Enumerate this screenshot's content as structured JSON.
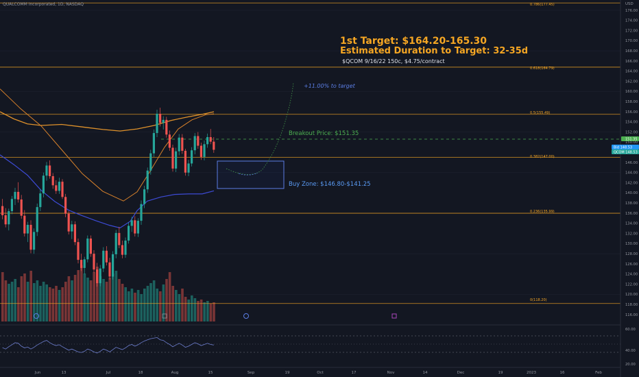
{
  "header": {
    "title": "QUALCOMM Incorporated, 1D, NASDAQ",
    "currency": "USD"
  },
  "annotations": {
    "target_line1": "1st Target: $164.20-165.30",
    "target_line2": "Estimated Duration to Target: 32-35d",
    "contract": "$QCOM 9/16/22 150c, $4.75/contract",
    "percent_to_target": "+11.00% to target",
    "breakout": "Breakout Price: $151.35",
    "buy_zone": "Buy Zone: $146.80-$141.25"
  },
  "fib_levels": [
    {
      "label": "0.786(177.45)",
      "value": 177.45
    },
    {
      "label": "0.618(164.79)",
      "value": 164.79
    },
    {
      "label": "0.5(155.49)",
      "value": 155.49
    },
    {
      "label": "0.382(147.00)",
      "value": 147.0
    },
    {
      "label": "0.236(135.99)",
      "value": 135.99
    },
    {
      "label": "0(118.20)",
      "value": 118.2
    }
  ],
  "price_axis_labels": [
    "176.00",
    "174.00",
    "172.00",
    "170.00",
    "168.00",
    "166.00",
    "164.00",
    "162.00",
    "160.00",
    "158.00",
    "156.00",
    "154.00",
    "152.00",
    "150.00",
    "148.00",
    "146.00",
    "144.00",
    "142.00",
    "140.00",
    "138.00",
    "136.00",
    "134.00",
    "132.00",
    "130.00",
    "128.00",
    "126.00",
    "124.00",
    "122.00",
    "120.00",
    "118.00",
    "116.00"
  ],
  "price_tags": [
    {
      "label": "151.35",
      "color": "#4caf50"
    },
    {
      "label": "Bid 148.53",
      "color": "#2196f3"
    },
    {
      "label": "QCOM 148.53",
      "color": "#26a69a"
    }
  ],
  "indicator_axis_labels": [
    "60.00",
    "40.00",
    "20.00"
  ],
  "time_axis_labels": [
    "Jun",
    "13",
    "Jul",
    "18",
    "Aug",
    "15",
    "Sep",
    "19",
    "Oct",
    "17",
    "Nov",
    "14",
    "Dec",
    "19",
    "2023",
    "16",
    "Feb"
  ],
  "chart_data": {
    "type": "candlestick",
    "symbol": "QCOM",
    "ylim": [
      115,
      180
    ],
    "breakout_price": 151.35,
    "buy_zone": [
      141.25,
      146.8
    ],
    "target_range": [
      164.2,
      165.3
    ],
    "last_price": 148.53,
    "candles": [
      [
        137.4,
        138.8,
        134.8,
        135.6
      ],
      [
        135.6,
        137.0,
        133.2,
        133.8
      ],
      [
        133.8,
        136.9,
        132.6,
        136.4
      ],
      [
        136.4,
        139.4,
        135.8,
        138.8
      ],
      [
        138.8,
        141.0,
        137.6,
        140.2
      ],
      [
        140.2,
        142.1,
        138.1,
        138.7
      ],
      [
        138.7,
        139.6,
        134.9,
        135.5
      ],
      [
        135.5,
        136.6,
        131.4,
        132.0
      ],
      [
        132.0,
        134.3,
        130.3,
        133.7
      ],
      [
        133.7,
        134.6,
        128.1,
        128.8
      ],
      [
        128.8,
        133.0,
        128.0,
        132.3
      ],
      [
        132.3,
        137.9,
        131.5,
        137.2
      ],
      [
        137.2,
        140.8,
        136.4,
        139.9
      ],
      [
        139.9,
        144.0,
        139.1,
        143.4
      ],
      [
        143.4,
        146.1,
        142.4,
        145.4
      ],
      [
        145.4,
        146.4,
        142.8,
        143.3
      ],
      [
        143.3,
        143.9,
        140.8,
        141.5
      ],
      [
        141.5,
        142.5,
        139.8,
        140.4
      ],
      [
        140.4,
        143.0,
        139.8,
        142.2
      ],
      [
        142.2,
        142.7,
        138.8,
        139.2
      ],
      [
        139.2,
        139.8,
        135.2,
        135.9
      ],
      [
        135.9,
        136.4,
        131.8,
        132.4
      ],
      [
        132.4,
        134.5,
        130.9,
        133.8
      ],
      [
        133.8,
        134.4,
        129.7,
        130.3
      ],
      [
        130.3,
        131.0,
        126.1,
        126.8
      ],
      [
        126.8,
        128.0,
        124.6,
        125.2
      ],
      [
        125.2,
        127.4,
        124.0,
        126.9
      ],
      [
        126.9,
        131.6,
        126.3,
        131.0
      ],
      [
        131.0,
        131.6,
        127.4,
        128.0
      ],
      [
        128.0,
        128.7,
        124.3,
        124.9
      ],
      [
        124.9,
        126.2,
        121.5,
        122.2
      ],
      [
        122.2,
        125.8,
        121.6,
        125.1
      ],
      [
        125.1,
        129.3,
        124.4,
        128.6
      ],
      [
        128.6,
        129.5,
        125.7,
        126.3
      ],
      [
        126.3,
        127.2,
        122.9,
        123.5
      ],
      [
        123.5,
        128.5,
        122.9,
        127.9
      ],
      [
        127.9,
        132.7,
        127.1,
        132.1
      ],
      [
        132.1,
        133.3,
        129.1,
        129.7
      ],
      [
        129.7,
        130.6,
        127.1,
        127.8
      ],
      [
        127.8,
        131.2,
        127.2,
        130.6
      ],
      [
        130.6,
        134.2,
        130.0,
        133.5
      ],
      [
        133.5,
        135.3,
        132.3,
        134.6
      ],
      [
        134.6,
        135.4,
        131.4,
        132.0
      ],
      [
        132.0,
        135.0,
        131.3,
        134.5
      ],
      [
        134.5,
        138.5,
        133.7,
        137.8
      ],
      [
        137.8,
        141.4,
        137.0,
        140.7
      ],
      [
        140.7,
        145.0,
        140.0,
        144.4
      ],
      [
        144.4,
        148.5,
        143.6,
        147.8
      ],
      [
        147.8,
        152.5,
        147.1,
        151.8
      ],
      [
        151.8,
        156.4,
        151.0,
        155.6
      ],
      [
        155.6,
        156.8,
        153.1,
        153.8
      ],
      [
        153.8,
        155.1,
        152.5,
        154.4
      ],
      [
        154.4,
        155.0,
        150.9,
        151.5
      ],
      [
        151.5,
        152.3,
        148.3,
        148.9
      ],
      [
        148.9,
        149.5,
        144.2,
        144.8
      ],
      [
        144.8,
        148.9,
        144.1,
        148.2
      ],
      [
        148.2,
        151.6,
        147.4,
        150.9
      ],
      [
        150.9,
        151.6,
        147.7,
        148.3
      ],
      [
        148.3,
        148.7,
        143.4,
        144.0
      ],
      [
        144.0,
        146.5,
        143.3,
        145.8
      ],
      [
        145.8,
        149.0,
        145.2,
        148.4
      ],
      [
        148.4,
        151.8,
        147.6,
        151.2
      ],
      [
        151.2,
        152.0,
        148.7,
        149.3
      ],
      [
        149.3,
        149.9,
        146.5,
        147.1
      ],
      [
        147.1,
        150.3,
        146.4,
        149.6
      ],
      [
        149.6,
        151.7,
        148.9,
        151.0
      ],
      [
        151.0,
        152.6,
        149.6,
        150.1
      ],
      [
        150.1,
        151.0,
        147.9,
        148.5
      ]
    ],
    "volume": [
      72,
      60,
      55,
      58,
      62,
      50,
      66,
      70,
      58,
      74,
      56,
      60,
      52,
      58,
      54,
      50,
      48,
      52,
      46,
      50,
      58,
      66,
      60,
      68,
      75,
      82,
      70,
      64,
      60,
      72,
      80,
      66,
      62,
      58,
      64,
      70,
      74,
      62,
      55,
      50,
      44,
      48,
      42,
      46,
      40,
      48,
      52,
      56,
      60,
      48,
      44,
      54,
      62,
      72,
      52,
      46,
      40,
      48,
      36,
      32,
      38,
      34,
      30,
      32,
      28,
      30,
      26,
      28
    ],
    "ma_long": [
      [
        0,
        156.0
      ],
      [
        20,
        154.6
      ],
      [
        40,
        153.6
      ],
      [
        60,
        153.3
      ],
      [
        90,
        153.5
      ],
      [
        120,
        153.0
      ],
      [
        150,
        152.5
      ],
      [
        175,
        152.2
      ],
      [
        200,
        152.6
      ],
      [
        225,
        153.3
      ],
      [
        250,
        154.3
      ],
      [
        275,
        155.0
      ],
      [
        295,
        155.5
      ],
      [
        312,
        156.0
      ]
    ],
    "ma_mid": [
      [
        0,
        160.5
      ],
      [
        30,
        156.6
      ],
      [
        60,
        153.2
      ],
      [
        90,
        148.5
      ],
      [
        120,
        143.8
      ],
      [
        150,
        140.3
      ],
      [
        180,
        138.4
      ],
      [
        200,
        140.2
      ],
      [
        220,
        144.5
      ],
      [
        240,
        149.0
      ],
      [
        260,
        152.6
      ],
      [
        280,
        154.4
      ],
      [
        300,
        155.4
      ],
      [
        312,
        155.6
      ]
    ],
    "ma_short": [
      [
        0,
        147.5
      ],
      [
        20,
        145.6
      ],
      [
        40,
        143.5
      ],
      [
        60,
        140.5
      ],
      [
        80,
        138.3
      ],
      [
        100,
        136.6
      ],
      [
        120,
        135.5
      ],
      [
        140,
        134.5
      ],
      [
        160,
        133.6
      ],
      [
        175,
        133.1
      ],
      [
        190,
        134.4
      ],
      [
        200,
        136.5
      ],
      [
        215,
        138.4
      ],
      [
        235,
        139.2
      ],
      [
        255,
        139.7
      ],
      [
        275,
        139.8
      ],
      [
        295,
        139.8
      ],
      [
        312,
        140.4
      ]
    ],
    "rsi": [
      45,
      40,
      48,
      55,
      62,
      60,
      50,
      44,
      47,
      40,
      46,
      54,
      60,
      66,
      70,
      62,
      56,
      52,
      55,
      48,
      42,
      36,
      40,
      35,
      30,
      28,
      32,
      40,
      36,
      30,
      26,
      32,
      40,
      36,
      30,
      38,
      46,
      42,
      38,
      44,
      52,
      56,
      50,
      55,
      62,
      68,
      72,
      76,
      78,
      80,
      72,
      70,
      62,
      56,
      48,
      54,
      60,
      54,
      46,
      50,
      56,
      62,
      58,
      52,
      56,
      60,
      56,
      54
    ]
  }
}
